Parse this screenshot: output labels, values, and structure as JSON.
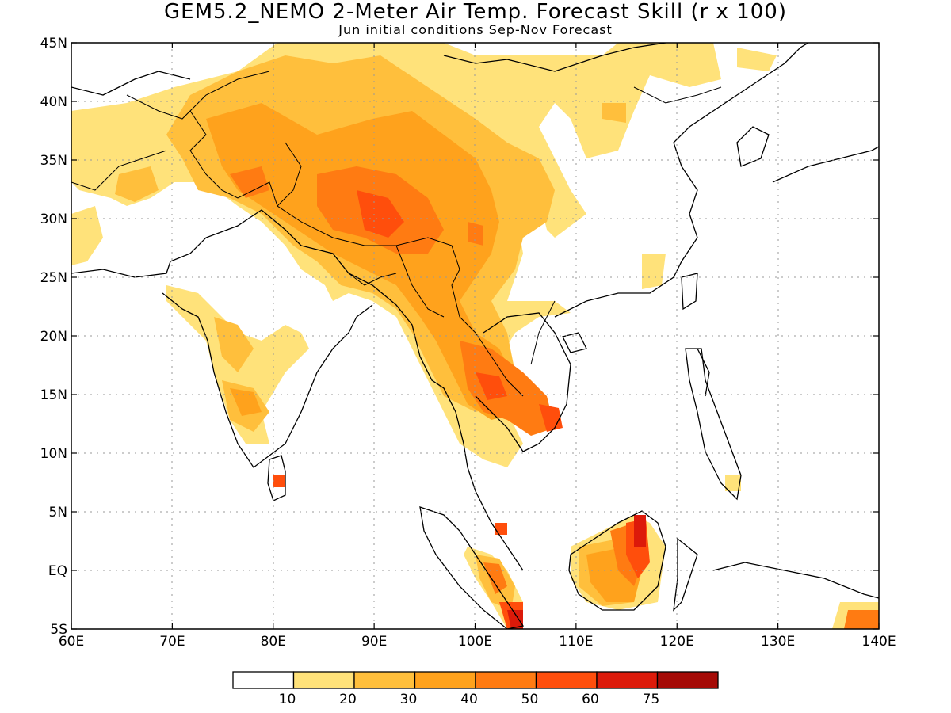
{
  "title": "GEM5.2_NEMO 2-Meter Air Temp. Forecast Skill (r x 100)",
  "subtitle": "Jun initial conditions  Sep-Nov Forecast",
  "x_ticks": [
    "60E",
    "70E",
    "80E",
    "90E",
    "100E",
    "110E",
    "120E",
    "130E",
    "140E"
  ],
  "y_ticks": [
    "45N",
    "40N",
    "35N",
    "30N",
    "25N",
    "20N",
    "15N",
    "10N",
    "5N",
    "EQ",
    "5S"
  ],
  "lon_range": [
    60,
    140
  ],
  "lat_range": [
    -5,
    45
  ],
  "colorbar": {
    "labels": [
      "10",
      "20",
      "30",
      "40",
      "50",
      "60",
      "75"
    ],
    "colors": [
      "#ffffff",
      "#ffe27a",
      "#ffbf3c",
      "#ffa21c",
      "#ff7b12",
      "#ff4e0c",
      "#dc1a0a",
      "#a50a06"
    ]
  },
  "colors": {
    "land_outline": "#000000",
    "grid": "#999999"
  }
}
